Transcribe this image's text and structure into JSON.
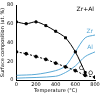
{
  "chart_data": {
    "type": "line",
    "title": "Zr+Al",
    "x_label": "Temperature (°C)",
    "y_label": "Surface composition (at. %)",
    "xlim": [
      0,
      800
    ],
    "xticks": [
      0,
      200,
      400,
      600,
      800
    ],
    "ylim": [
      0,
      80
    ],
    "yticks": [
      0,
      20,
      40,
      60,
      80
    ],
    "grid": false,
    "series": [
      {
        "name": "C",
        "color": "#000000",
        "marker": "square",
        "line_style": "solid",
        "x": [
          0,
          100,
          200,
          300,
          400,
          500,
          600,
          700
        ],
        "values": [
          62,
          60,
          62,
          58,
          52,
          45,
          30,
          8
        ]
      },
      {
        "name": "O",
        "color": "#000000",
        "marker": "circle",
        "line_style": "dashed",
        "x": [
          0,
          100,
          200,
          300,
          400,
          500,
          600,
          700,
          800
        ],
        "values": [
          30,
          28,
          25,
          22,
          18,
          14,
          10,
          5,
          3
        ]
      },
      {
        "name": "Zr",
        "color": "#5aa9d6",
        "marker": "none",
        "line_style": "solid",
        "x": [
          0,
          200,
          400,
          500,
          600,
          700,
          800
        ],
        "values": [
          5,
          6,
          10,
          15,
          30,
          45,
          48
        ]
      },
      {
        "name": "Al",
        "color": "#5aa9d6",
        "marker": "none",
        "line_style": "solid",
        "x": [
          0,
          400,
          500,
          600,
          700,
          800
        ],
        "values": [
          2,
          4,
          8,
          15,
          25,
          30
        ]
      }
    ]
  }
}
